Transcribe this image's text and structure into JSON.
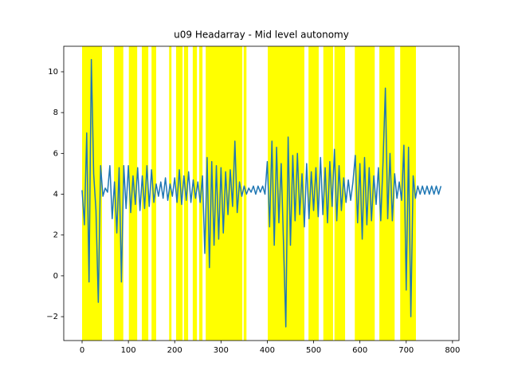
{
  "chart_data": {
    "type": "line",
    "title": "u09 Headarray - Mid level autonomy",
    "color": "#1f77b4",
    "span_color": "#ffff00",
    "spans": [
      [
        0,
        43
      ],
      [
        69,
        89
      ],
      [
        101,
        119
      ],
      [
        129,
        143
      ],
      [
        150,
        160
      ],
      [
        188,
        193
      ],
      [
        203,
        217
      ],
      [
        220,
        229
      ],
      [
        239,
        248
      ],
      [
        253,
        260
      ],
      [
        267,
        346
      ],
      [
        349,
        355
      ],
      [
        401,
        480
      ],
      [
        489,
        511
      ],
      [
        521,
        542
      ],
      [
        545,
        568
      ],
      [
        589,
        632
      ],
      [
        642,
        675
      ],
      [
        687,
        721
      ]
    ],
    "x": [
      0,
      5,
      10,
      15,
      20,
      25,
      30,
      35,
      40,
      45,
      50,
      55,
      60,
      65,
      70,
      75,
      80,
      85,
      90,
      95,
      100,
      105,
      110,
      115,
      120,
      125,
      130,
      135,
      140,
      145,
      150,
      155,
      160,
      165,
      170,
      175,
      180,
      185,
      190,
      195,
      200,
      205,
      210,
      215,
      220,
      225,
      230,
      235,
      240,
      245,
      250,
      255,
      260,
      265,
      270,
      275,
      280,
      285,
      290,
      295,
      300,
      305,
      310,
      315,
      320,
      325,
      330,
      335,
      340,
      345,
      350,
      355,
      360,
      365,
      370,
      375,
      380,
      385,
      390,
      395,
      400,
      405,
      410,
      415,
      420,
      425,
      430,
      435,
      440,
      445,
      450,
      455,
      460,
      465,
      470,
      475,
      480,
      485,
      490,
      495,
      500,
      505,
      510,
      515,
      520,
      525,
      530,
      535,
      540,
      545,
      550,
      555,
      560,
      565,
      570,
      575,
      580,
      585,
      590,
      595,
      600,
      605,
      610,
      615,
      620,
      625,
      630,
      635,
      640,
      645,
      650,
      655,
      660,
      665,
      670,
      675,
      680,
      685,
      690,
      695,
      700,
      705,
      710,
      715,
      720,
      725,
      730,
      735,
      740,
      745,
      750,
      755,
      760,
      765,
      770,
      775
    ],
    "values": [
      4.2,
      2.5,
      7.0,
      -0.3,
      10.6,
      5.0,
      3.2,
      -1.3,
      5.4,
      3.9,
      4.3,
      4.1,
      5.4,
      2.8,
      4.6,
      2.1,
      5.3,
      -0.3,
      5.4,
      3.3,
      5.4,
      3.1,
      4.9,
      3.5,
      5.3,
      3.2,
      4.9,
      3.3,
      5.4,
      3.4,
      5.2,
      3.6,
      4.5,
      3.9,
      4.6,
      3.8,
      4.8,
      3.7,
      4.5,
      3.9,
      4.8,
      3.6,
      5.2,
      3.5,
      4.9,
      3.7,
      5.1,
      3.6,
      4.7,
      3.8,
      4.6,
      3.6,
      4.9,
      1.1,
      5.8,
      0.4,
      5.6,
      1.5,
      5.4,
      1.8,
      5.3,
      2.1,
      5.1,
      3.0,
      5.2,
      3.4,
      6.6,
      3.1,
      4.6,
      3.9,
      4.4,
      4.0,
      4.3,
      4.1,
      4.4,
      4.0,
      4.4,
      4.1,
      4.4,
      4.0,
      5.6,
      2.4,
      6.6,
      1.5,
      6.3,
      2.6,
      5.5,
      1.6,
      -2.5,
      6.8,
      1.5,
      5.9,
      2.7,
      6.0,
      3.0,
      5.0,
      2.4,
      5.5,
      2.8,
      5.1,
      3.2,
      5.3,
      2.9,
      5.8,
      3.0,
      5.3,
      2.6,
      5.6,
      3.4,
      6.2,
      2.7,
      5.4,
      3.2,
      4.8,
      3.6,
      4.7,
      3.7,
      4.6,
      5.9,
      2.6,
      5.5,
      1.8,
      5.8,
      2.5,
      5.3,
      2.7,
      4.9,
      3.5,
      5.3,
      2.7,
      5.6,
      9.2,
      2.8,
      6.0,
      2.7,
      5.0,
      3.8,
      4.6,
      3.7,
      6.4,
      -0.7,
      6.3,
      -2.0,
      4.9,
      3.8,
      4.4,
      4.0,
      4.4,
      4.0,
      4.4,
      4.0,
      4.4,
      4.0,
      4.4,
      4.0,
      4.4
    ],
    "xlim": [
      -39.6,
      814
    ],
    "ylim": [
      -3.17,
      11.25
    ],
    "xticks": [
      0,
      100,
      200,
      300,
      400,
      500,
      600,
      700,
      800
    ],
    "yticks": [
      {
        "value": -2,
        "label": "−2"
      },
      0,
      2,
      4,
      6,
      8,
      10
    ]
  }
}
